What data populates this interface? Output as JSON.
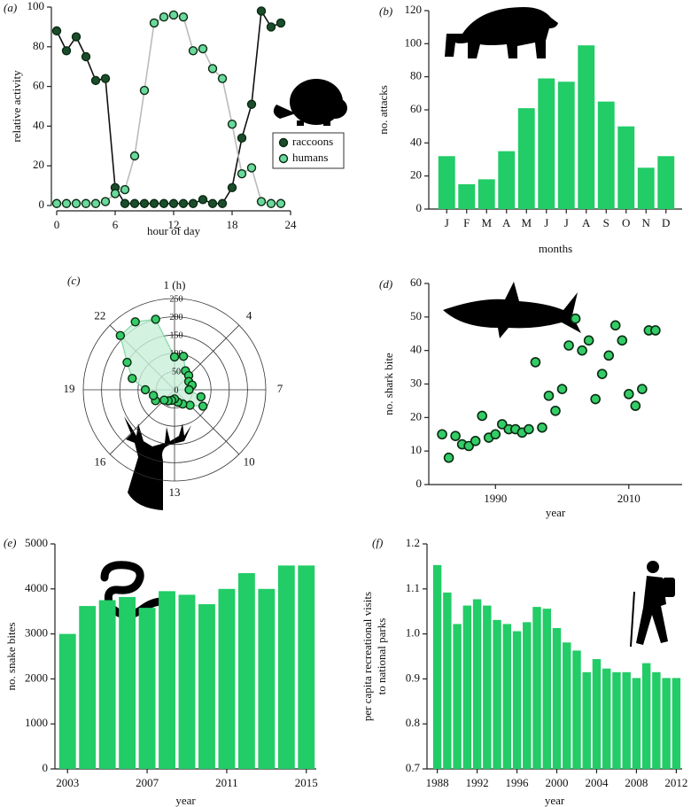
{
  "chart_data": [
    {
      "type": "line",
      "panel_label": "(a)",
      "y_label": "relative activity",
      "x_label": "hour of day",
      "x": [
        0,
        1,
        2,
        3,
        4,
        5,
        6,
        7,
        8,
        9,
        10,
        11,
        12,
        13,
        14,
        15,
        16,
        17,
        18,
        19,
        20,
        21,
        22,
        23
      ],
      "series": [
        {
          "name": "raccoons",
          "color": "#1b4d2c",
          "line_color": "#111111",
          "values": [
            88,
            78,
            85,
            75,
            63,
            64,
            9,
            1,
            1,
            1,
            1,
            1,
            1,
            1,
            1,
            3,
            1,
            1,
            9,
            34,
            51,
            98,
            90,
            92
          ]
        },
        {
          "name": "humans",
          "color": "#6ad99c",
          "line_color": "#bbbbbb",
          "values": [
            1,
            1,
            1,
            1,
            1,
            2,
            6,
            8,
            25,
            58,
            92,
            95,
            96,
            95,
            78,
            79,
            69,
            64,
            41,
            16,
            19,
            2,
            1,
            1
          ]
        }
      ],
      "xlim": [
        0,
        24
      ],
      "xticks": [
        0,
        6,
        12,
        18,
        24
      ],
      "ylim": [
        0,
        100
      ],
      "yticks": [
        0,
        20,
        40,
        60,
        80,
        100
      ],
      "legend": "right"
    },
    {
      "type": "bar",
      "panel_label": "(b)",
      "y_label": "no. attacks",
      "x_label": "months",
      "categories": [
        "J",
        "F",
        "M",
        "A",
        "M",
        "J",
        "J",
        "A",
        "S",
        "O",
        "N",
        "D"
      ],
      "values": [
        32,
        15,
        18,
        35,
        61,
        79,
        77,
        99,
        65,
        50,
        25,
        32
      ],
      "color": "#22cc66",
      "ylim": [
        0,
        120
      ],
      "yticks": [
        0,
        20,
        40,
        60,
        80,
        100,
        120
      ]
    },
    {
      "type": "polar",
      "panel_label": "(c)",
      "x": [
        1,
        2,
        3,
        4,
        5,
        6,
        7,
        8,
        9,
        10,
        11,
        12,
        13,
        14,
        15,
        16,
        17,
        18,
        19,
        20,
        21,
        22,
        23,
        24
      ],
      "values": [
        90,
        95,
        60,
        55,
        45,
        50,
        40,
        75,
        90,
        60,
        45,
        35,
        25,
        30,
        35,
        40,
        60,
        60,
        80,
        120,
        150,
        210,
        215,
        200
      ],
      "color": "#33cc66",
      "area_color": "#c8efd8",
      "xlim": [
        1,
        25
      ],
      "xticks": [
        {
          "value": 1,
          "label": "1 (h)"
        },
        4,
        7,
        10,
        13,
        16,
        19,
        22
      ],
      "rlim": [
        0,
        250
      ],
      "rticks": [
        0,
        50,
        100,
        150,
        200,
        250
      ]
    },
    {
      "type": "scatter",
      "panel_label": "(d)",
      "y_label": "no. shark bite",
      "x_label": "year",
      "x": [
        1982,
        1983,
        1984,
        1985,
        1986,
        1987,
        1988,
        1989,
        1990,
        1991,
        1992,
        1993,
        1994,
        1995,
        1996,
        1997,
        1998,
        1999,
        2000,
        2001,
        2002,
        2003,
        2004,
        2005,
        2006,
        2007,
        2008,
        2009,
        2010,
        2011,
        2012,
        2013,
        2014
      ],
      "values": [
        15,
        8,
        14.5,
        12,
        11.5,
        13,
        20.5,
        14,
        15,
        18,
        16.5,
        16.5,
        15.5,
        16.5,
        36.5,
        17,
        26.5,
        22,
        28.5,
        41.5,
        49.5,
        40,
        43,
        25.5,
        33,
        38.5,
        47.5,
        43,
        27,
        23.5,
        28.5,
        46,
        46
      ],
      "color": "#33cc66",
      "xlim": [
        1980,
        2018
      ],
      "xticks": [
        1990,
        2010
      ],
      "ylim": [
        0,
        60
      ],
      "yticks": [
        0,
        10,
        20,
        30,
        40,
        50,
        60
      ]
    },
    {
      "type": "bar",
      "panel_label": "(e)",
      "y_label": "no. snake bites",
      "x_label": "year",
      "categories": [
        2003,
        null,
        null,
        null,
        2007,
        null,
        null,
        null,
        2011,
        null,
        null,
        null,
        2015
      ],
      "values": [
        3000,
        3620,
        3750,
        3820,
        3580,
        3950,
        3870,
        3660,
        4000,
        4350,
        4000,
        4520,
        4520
      ],
      "color": "#22cc66",
      "ylim": [
        0,
        5000
      ],
      "yticks": [
        0,
        1000,
        2000,
        3000,
        4000,
        5000
      ]
    },
    {
      "type": "bar",
      "panel_label": "(f)",
      "y_label": [
        "per capita recreational visits",
        "to national parks"
      ],
      "x_label": "year",
      "categories": [
        1988,
        null,
        null,
        null,
        1992,
        null,
        null,
        null,
        1996,
        null,
        null,
        null,
        2000,
        null,
        null,
        null,
        2004,
        null,
        null,
        null,
        2008,
        null,
        null,
        null,
        2012
      ],
      "values": [
        1.153,
        1.092,
        1.022,
        1.063,
        1.077,
        1.063,
        1.031,
        1.022,
        1.006,
        1.026,
        1.06,
        1.056,
        1.013,
        0.981,
        0.963,
        0.915,
        0.944,
        0.923,
        0.915,
        0.915,
        0.902,
        0.935,
        0.915,
        0.902,
        0.902
      ],
      "color": "#22cc66",
      "ylim": [
        0.7,
        1.2
      ],
      "yticks": [
        0.7,
        0.8,
        0.9,
        {
          "value": 1,
          "label": "1.0"
        },
        1.1,
        1.2
      ]
    }
  ]
}
